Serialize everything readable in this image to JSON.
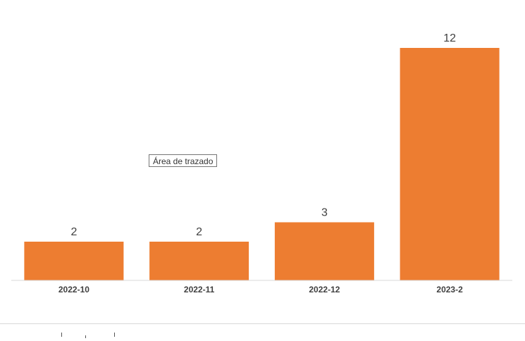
{
  "chart_data": {
    "type": "bar",
    "categories": [
      "2022-10",
      "2022-11",
      "2022-12",
      "2023-2"
    ],
    "values": [
      2,
      2,
      3,
      12
    ],
    "data_labels": [
      "2",
      "2",
      "3",
      "12"
    ],
    "title": "",
    "xlabel": "",
    "ylabel": "",
    "ylim": [
      0,
      12
    ],
    "grid": false,
    "legend": "none",
    "bar_color": "#ED7D31",
    "axis_color": "#D9D9D9",
    "label_color": "#404040"
  },
  "tooltip": {
    "text": "Área de trazado"
  }
}
